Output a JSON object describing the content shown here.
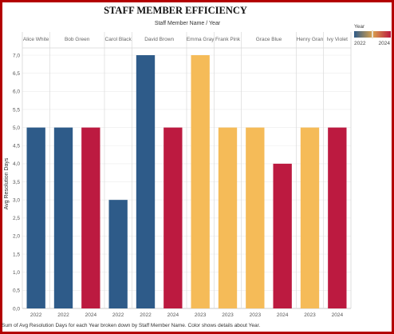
{
  "chart_data": {
    "type": "bar",
    "title": "STAFF MEMBER EFFICIENCY",
    "subtitle": "Staff Member Name / Year",
    "ylabel": "Avg Resolution Days",
    "ylim": [
      0,
      7.2
    ],
    "yticks": [
      "0,0",
      "0,5",
      "1,0",
      "1,5",
      "2,0",
      "2,5",
      "3,0",
      "3,5",
      "4,0",
      "4,5",
      "5,0",
      "5,5",
      "6,0",
      "6,5",
      "7,0"
    ],
    "grid": true,
    "groups": [
      {
        "name": "Alice White",
        "bars": [
          {
            "year": "2022",
            "value": 5
          }
        ]
      },
      {
        "name": "Bob Green",
        "bars": [
          {
            "year": "2022",
            "value": 5
          },
          {
            "year": "2024",
            "value": 5
          }
        ]
      },
      {
        "name": "Carol Black",
        "bars": [
          {
            "year": "2022",
            "value": 3
          }
        ]
      },
      {
        "name": "David Brown",
        "bars": [
          {
            "year": "2022",
            "value": 7
          },
          {
            "year": "2024",
            "value": 5
          }
        ]
      },
      {
        "name": "Emma Gray",
        "bars": [
          {
            "year": "2023",
            "value": 7
          }
        ]
      },
      {
        "name": "Frank Pink",
        "bars": [
          {
            "year": "2023",
            "value": 5
          }
        ]
      },
      {
        "name": "Grace Blue",
        "bars": [
          {
            "year": "2023",
            "value": 5
          },
          {
            "year": "2024",
            "value": 4
          }
        ]
      },
      {
        "name": "Henry Gran",
        "bars": [
          {
            "year": "2023",
            "value": 5
          }
        ]
      },
      {
        "name": "Ivy Violet",
        "bars": [
          {
            "year": "2024",
            "value": 5
          }
        ]
      }
    ],
    "year_colors": {
      "2022": "#2e5b89",
      "2023": "#f5bb58",
      "2024": "#bc1a40"
    },
    "legend": {
      "title": "Year",
      "min": "2022",
      "max": "2024",
      "placement": "top-right"
    },
    "caption": "Sum of Avg Resolution Days for each Year broken down by Staff Member Name. Color shows details about Year."
  }
}
